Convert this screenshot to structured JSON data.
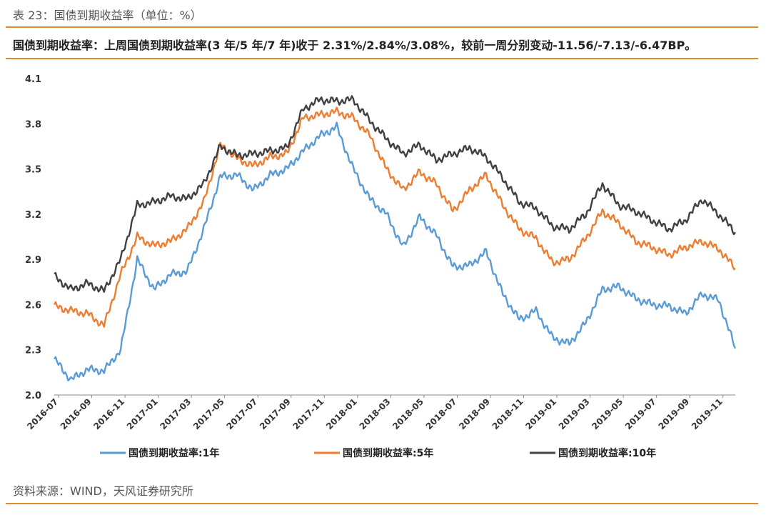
{
  "caption": "表 23：国债到期收益率（单位：%）",
  "subtitle": "国债到期收益率：上周国债到期收益率(3 年/5 年/7 年)收于 2.31%/2.84%/3.08%，较前一周分别变动-11.56/-7.13/-6.47BP。",
  "source": "资料来源：WIND，天风证券研究所",
  "colors": {
    "accent": "#e08a2c",
    "s1": "#5b9bd5",
    "s5": "#ed7d31",
    "s10": "#404040"
  },
  "chart_data": {
    "type": "line",
    "title": "",
    "xlabel": "",
    "ylabel": "",
    "ylim": [
      2.0,
      4.1
    ],
    "yticks": [
      "2.0",
      "2.3",
      "2.6",
      "2.9",
      "3.2",
      "3.5",
      "3.8",
      "4.1"
    ],
    "xticks": [
      "2016-07",
      "2016-09",
      "2016-11",
      "2017-01",
      "2017-03",
      "2017-05",
      "2017-07",
      "2017-09",
      "2017-11",
      "2018-01",
      "2018-03",
      "2018-05",
      "2018-07",
      "2018-09",
      "2018-11",
      "2019-01",
      "2019-03",
      "2019-05",
      "2019-07",
      "2019-09",
      "2019-11"
    ],
    "legend_position": "bottom",
    "x": [
      "2016-07",
      "2016-08",
      "2016-09",
      "2016-10",
      "2016-11",
      "2016-12",
      "2017-01",
      "2017-02",
      "2017-03",
      "2017-04",
      "2017-05",
      "2017-06",
      "2017-07",
      "2017-08",
      "2017-09",
      "2017-10",
      "2017-11",
      "2017-12",
      "2018-01",
      "2018-02",
      "2018-03",
      "2018-04",
      "2018-05",
      "2018-06",
      "2018-07",
      "2018-08",
      "2018-09",
      "2018-10",
      "2018-11",
      "2018-12",
      "2019-01",
      "2019-02",
      "2019-03",
      "2019-04",
      "2019-05",
      "2019-06",
      "2019-07",
      "2019-08",
      "2019-09",
      "2019-10",
      "2019-11",
      "2019-12"
    ],
    "series": [
      {
        "name": "国债到期收益率:1年",
        "color": "#5b9bd5",
        "values": [
          2.24,
          2.1,
          2.17,
          2.16,
          2.3,
          2.9,
          2.7,
          2.8,
          2.82,
          3.1,
          3.45,
          3.46,
          3.36,
          3.46,
          3.5,
          3.62,
          3.72,
          3.78,
          3.5,
          3.3,
          3.2,
          2.98,
          3.18,
          3.06,
          2.85,
          2.86,
          2.95,
          2.67,
          2.5,
          2.56,
          2.38,
          2.34,
          2.48,
          2.7,
          2.72,
          2.64,
          2.6,
          2.59,
          2.54,
          2.67,
          2.63,
          2.31
        ]
      },
      {
        "name": "国债到期收益率:5年",
        "color": "#ed7d31",
        "values": [
          2.59,
          2.56,
          2.54,
          2.46,
          2.8,
          3.05,
          2.99,
          3.02,
          3.1,
          3.28,
          3.66,
          3.57,
          3.52,
          3.58,
          3.6,
          3.84,
          3.86,
          3.88,
          3.84,
          3.72,
          3.5,
          3.36,
          3.48,
          3.4,
          3.22,
          3.36,
          3.46,
          3.26,
          3.1,
          3.04,
          2.88,
          2.9,
          3.04,
          3.22,
          3.14,
          3.02,
          2.98,
          2.93,
          2.98,
          3.02,
          2.97,
          2.84
        ]
      },
      {
        "name": "国债到期收益率:10年",
        "color": "#404040",
        "values": [
          2.79,
          2.7,
          2.74,
          2.69,
          2.9,
          3.26,
          3.28,
          3.32,
          3.3,
          3.4,
          3.65,
          3.59,
          3.6,
          3.62,
          3.64,
          3.9,
          3.96,
          3.95,
          3.96,
          3.82,
          3.7,
          3.6,
          3.66,
          3.56,
          3.6,
          3.64,
          3.58,
          3.44,
          3.28,
          3.24,
          3.12,
          3.1,
          3.2,
          3.4,
          3.26,
          3.22,
          3.16,
          3.1,
          3.16,
          3.3,
          3.2,
          3.08
        ]
      }
    ]
  }
}
